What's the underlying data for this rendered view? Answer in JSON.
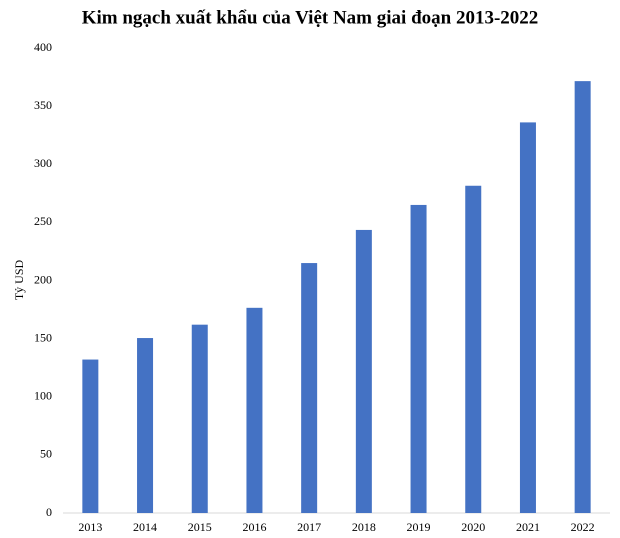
{
  "chart_data": {
    "type": "bar",
    "title": "Kim ngạch xuất khẩu của Việt Nam giai đoạn 2013-2022",
    "y_label": "Tỷ USD",
    "categories": [
      "2013",
      "2014",
      "2015",
      "2016",
      "2017",
      "2018",
      "2019",
      "2020",
      "2021",
      "2022"
    ],
    "values": [
      132,
      150.5,
      162,
      176.5,
      215,
      243.5,
      265,
      281.5,
      336,
      371.5
    ],
    "color": "#4472c4",
    "ylim": [
      0,
      400
    ],
    "yticks": [
      0,
      50,
      100,
      150,
      200,
      250,
      300,
      350,
      400
    ],
    "grid": false
  }
}
